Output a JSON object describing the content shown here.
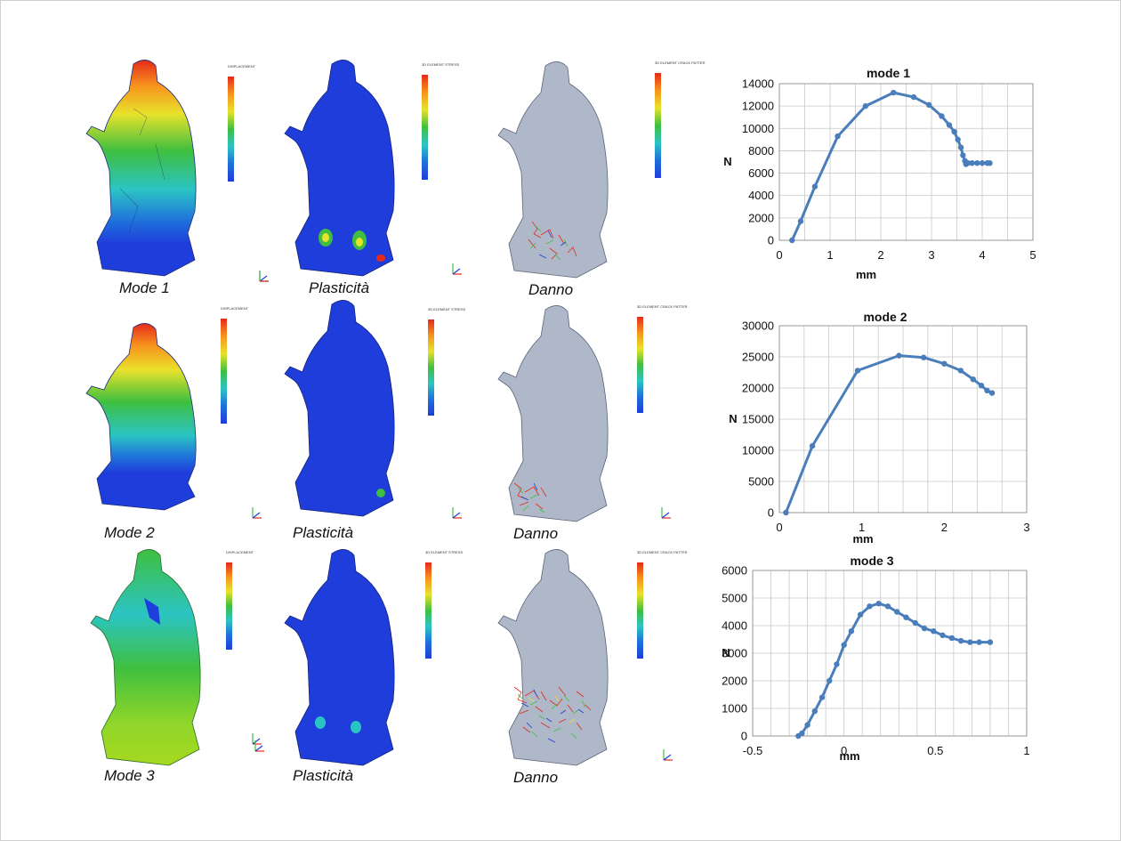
{
  "captions": {
    "row1": [
      "Mode 1",
      "Plasticità",
      "Danno"
    ],
    "row2": [
      "Mode 2",
      "Plasticità",
      "Danno"
    ],
    "row3": [
      "Mode 3",
      "Plasticità",
      "Danno"
    ]
  },
  "legend_titles": {
    "displacement": "DISPLACEMENT",
    "stress": "3D ELEMENT STRESS",
    "crack": "3D ELEMENT CRACK PATTER"
  },
  "colors": {
    "curve": "#4a7ebb",
    "grid": "#c8c8c8",
    "red": "#e52a1c",
    "orange": "#f7941d",
    "yellow": "#e8e22b",
    "green": "#3fbf3f",
    "cyan": "#2bc4c4",
    "blue": "#1f3ddb",
    "grey": "#aeb8c8"
  },
  "chart_data": [
    {
      "type": "line",
      "title": "mode 1",
      "xlabel": "mm",
      "ylabel": "N",
      "xlim": [
        0,
        5
      ],
      "ylim": [
        0,
        14000
      ],
      "xticks": [
        "0",
        "1",
        "2",
        "3",
        "4",
        "5"
      ],
      "yticks": [
        "0",
        "2000",
        "4000",
        "6000",
        "8000",
        "10000",
        "12000",
        "14000"
      ],
      "x": [
        0.25,
        0.42,
        0.7,
        1.15,
        1.7,
        2.25,
        2.65,
        2.95,
        3.2,
        3.35,
        3.45,
        3.52,
        3.58,
        3.62,
        3.66,
        3.68,
        3.7,
        3.72,
        3.8,
        3.9,
        4.0,
        4.1,
        4.15
      ],
      "y": [
        0,
        1700,
        4800,
        9300,
        12000,
        13200,
        12800,
        12100,
        11100,
        10300,
        9700,
        9000,
        8300,
        7600,
        7100,
        6800,
        6900,
        6900,
        6900,
        6900,
        6900,
        6900,
        6900
      ]
    },
    {
      "type": "line",
      "title": "mode 2",
      "xlabel": "mm",
      "ylabel": "N",
      "xlim": [
        0,
        3
      ],
      "ylim": [
        0,
        30000
      ],
      "xticks": [
        "0",
        "1",
        "2",
        "3"
      ],
      "yticks": [
        "0",
        "5000",
        "10000",
        "15000",
        "20000",
        "25000",
        "30000"
      ],
      "x": [
        0.08,
        0.4,
        0.95,
        1.45,
        1.75,
        2.0,
        2.2,
        2.35,
        2.45,
        2.52,
        2.58
      ],
      "y": [
        0,
        10700,
        22800,
        25200,
        24900,
        23900,
        22800,
        21400,
        20400,
        19600,
        19200
      ]
    },
    {
      "type": "line",
      "title": "mode 3",
      "xlabel": "mm",
      "ylabel": "N",
      "xlim": [
        -0.5,
        1
      ],
      "ylim": [
        0,
        6000
      ],
      "xticks": [
        "-0.5",
        "0",
        "0.5",
        "1"
      ],
      "yticks": [
        "0",
        "1000",
        "2000",
        "3000",
        "4000",
        "5000",
        "6000"
      ],
      "x": [
        -0.25,
        -0.23,
        -0.2,
        -0.16,
        -0.12,
        -0.08,
        -0.04,
        0.0,
        0.04,
        0.09,
        0.14,
        0.19,
        0.24,
        0.29,
        0.34,
        0.39,
        0.44,
        0.49,
        0.54,
        0.59,
        0.64,
        0.69,
        0.74,
        0.8
      ],
      "y": [
        0,
        100,
        400,
        900,
        1400,
        2000,
        2600,
        3300,
        3800,
        4400,
        4700,
        4800,
        4700,
        4500,
        4300,
        4100,
        3900,
        3800,
        3650,
        3550,
        3450,
        3400,
        3400,
        3400
      ]
    }
  ]
}
